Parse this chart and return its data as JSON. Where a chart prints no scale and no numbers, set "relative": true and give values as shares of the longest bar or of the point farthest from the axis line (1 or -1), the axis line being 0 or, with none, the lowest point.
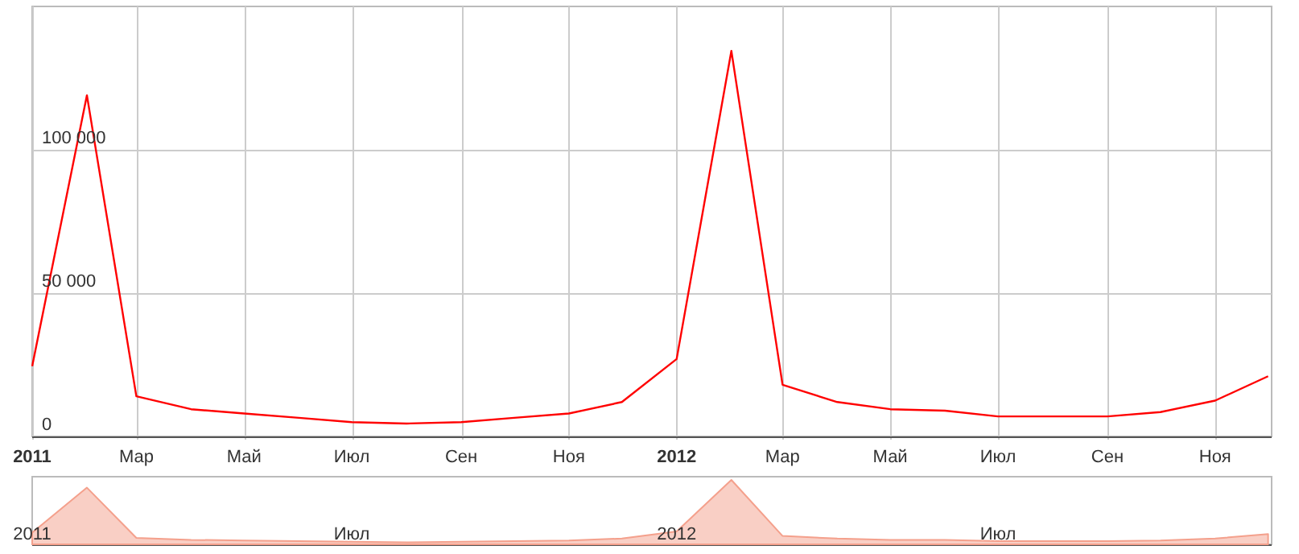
{
  "chart_data": [
    {
      "type": "line",
      "x": [
        "2011-01-01",
        "2011-02-01",
        "2011-03-01",
        "2011-04-01",
        "2011-05-01",
        "2011-06-01",
        "2011-07-01",
        "2011-08-01",
        "2011-09-01",
        "2011-10-01",
        "2011-11-01",
        "2011-12-01",
        "2012-01-01",
        "2012-02-01",
        "2012-03-01",
        "2012-04-01",
        "2012-05-01",
        "2012-06-01",
        "2012-07-01",
        "2012-08-01",
        "2012-09-01",
        "2012-10-01",
        "2012-11-01",
        "2012-12-01"
      ],
      "series": [
        {
          "color": "#ff0000",
          "values": [
            24500,
            119000,
            14000,
            9500,
            8000,
            6500,
            5000,
            4500,
            5000,
            6500,
            8000,
            12000,
            27000,
            134500,
            18000,
            12000,
            9500,
            9000,
            7000,
            7000,
            7000,
            8500,
            12500,
            21000
          ]
        }
      ],
      "xlim": [
        "2011-01-01",
        "2012-12-03"
      ],
      "xticks": [
        {
          "value": "2011-01-01",
          "label": "2011"
        },
        {
          "value": "2011-03-01",
          "label": "Мар"
        },
        {
          "value": "2011-05-01",
          "label": "Май"
        },
        {
          "value": "2011-07-01",
          "label": "Июл"
        },
        {
          "value": "2011-09-01",
          "label": "Сен"
        },
        {
          "value": "2011-11-01",
          "label": "Ноя"
        },
        {
          "value": "2012-01-01",
          "label": "2012"
        },
        {
          "value": "2012-03-01",
          "label": "Мар"
        },
        {
          "value": "2012-05-01",
          "label": "Май"
        },
        {
          "value": "2012-07-01",
          "label": "Июл"
        },
        {
          "value": "2012-09-01",
          "label": "Сен"
        },
        {
          "value": "2012-11-01",
          "label": "Ноя"
        }
      ],
      "ylim": [
        0,
        150000
      ],
      "yticks": [
        0,
        {
          "value": 50000,
          "label": "50 000"
        },
        {
          "value": 100000,
          "label": "100 000"
        }
      ],
      "grid": true
    },
    {
      "type": "area",
      "relative": true,
      "x": [
        "2011-01-01",
        "2011-02-01",
        "2011-03-01",
        "2011-04-01",
        "2011-05-01",
        "2011-06-01",
        "2011-07-01",
        "2011-08-01",
        "2011-09-01",
        "2011-10-01",
        "2011-11-01",
        "2011-12-01",
        "2012-01-01",
        "2012-02-01",
        "2012-03-01",
        "2012-04-01",
        "2012-05-01",
        "2012-06-01",
        "2012-07-01",
        "2012-08-01",
        "2012-09-01",
        "2012-10-01",
        "2012-11-01",
        "2012-12-01"
      ],
      "series": [
        {
          "color": "#f4a08c",
          "values": [
            0.18,
            0.88,
            0.1,
            0.07,
            0.06,
            0.05,
            0.04,
            0.03,
            0.04,
            0.05,
            0.06,
            0.09,
            0.2,
            1,
            0.13,
            0.09,
            0.07,
            0.07,
            0.05,
            0.05,
            0.05,
            0.06,
            0.09,
            0.16
          ]
        }
      ],
      "xlim": [
        "2011-01-01",
        "2012-12-03"
      ],
      "xticks": [
        {
          "value": "2011-01-01",
          "label": "2011"
        },
        {
          "value": "2011-07-01",
          "label": "Июл"
        },
        {
          "value": "2012-01-01",
          "label": "2012"
        },
        {
          "value": "2012-07-01",
          "label": "Июл"
        }
      ]
    }
  ]
}
